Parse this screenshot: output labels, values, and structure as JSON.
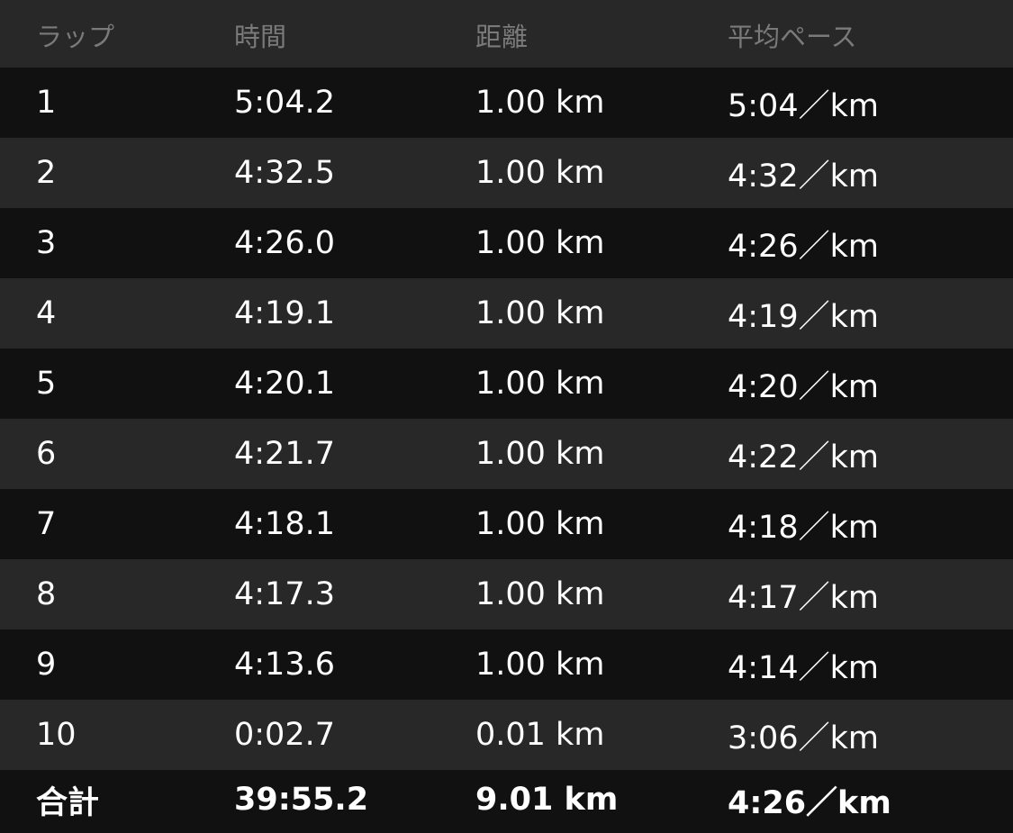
{
  "header": {
    "lap": "ラップ",
    "time": "時間",
    "distance": "距離",
    "pace": "平均ペース"
  },
  "laps": [
    {
      "lap": "1",
      "time": "5:04.2",
      "distance": "1.00 km",
      "pace": "5:04／km"
    },
    {
      "lap": "2",
      "time": "4:32.5",
      "distance": "1.00 km",
      "pace": "4:32／km"
    },
    {
      "lap": "3",
      "time": "4:26.0",
      "distance": "1.00 km",
      "pace": "4:26／km"
    },
    {
      "lap": "4",
      "time": "4:19.1",
      "distance": "1.00 km",
      "pace": "4:19／km"
    },
    {
      "lap": "5",
      "time": "4:20.1",
      "distance": "1.00 km",
      "pace": "4:20／km"
    },
    {
      "lap": "6",
      "time": "4:21.7",
      "distance": "1.00 km",
      "pace": "4:22／km"
    },
    {
      "lap": "7",
      "time": "4:18.1",
      "distance": "1.00 km",
      "pace": "4:18／km"
    },
    {
      "lap": "8",
      "time": "4:17.3",
      "distance": "1.00 km",
      "pace": "4:17／km"
    },
    {
      "lap": "9",
      "time": "4:13.6",
      "distance": "1.00 km",
      "pace": "4:14／km"
    },
    {
      "lap": "10",
      "time": "0:02.7",
      "distance": "0.01 km",
      "pace": "3:06／km"
    }
  ],
  "total": {
    "lap": "合計",
    "time": "39:55.2",
    "distance": "9.01 km",
    "pace": "4:26／km"
  }
}
